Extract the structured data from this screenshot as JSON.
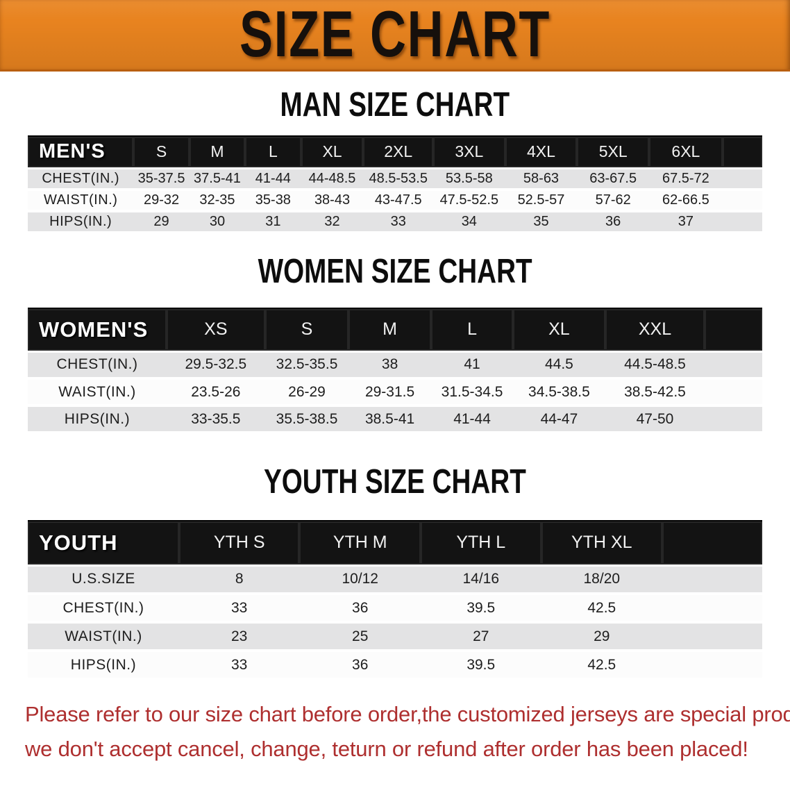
{
  "banner": {
    "title": "SIZE CHART",
    "bg_color": "#E8831F",
    "text_color": "#16100C"
  },
  "sections": [
    {
      "title": "MAN SIZE CHART",
      "corner_label": "MEN'S",
      "columns": [
        "S",
        "M",
        "L",
        "XL",
        "2XL",
        "3XL",
        "4XL",
        "5XL",
        "6XL"
      ],
      "rows": [
        {
          "label": "CHEST(IN.)",
          "values": [
            "35-37.5",
            "37.5-41",
            "41-44",
            "44-48.5",
            "48.5-53.5",
            "53.5-58",
            "58-63",
            "63-67.5",
            "67.5-72"
          ]
        },
        {
          "label": "WAIST(IN.)",
          "values": [
            "29-32",
            "32-35",
            "35-38",
            "38-43",
            "43-47.5",
            "47.5-52.5",
            "52.5-57",
            "57-62",
            "62-66.5"
          ]
        },
        {
          "label": "HIPS(IN.)",
          "values": [
            "29",
            "30",
            "31",
            "32",
            "33",
            "34",
            "35",
            "36",
            "37"
          ]
        }
      ]
    },
    {
      "title": "WOMEN SIZE CHART",
      "corner_label": "WOMEN'S",
      "columns": [
        "XS",
        "S",
        "M",
        "L",
        "XL",
        "XXL"
      ],
      "rows": [
        {
          "label": "CHEST(IN.)",
          "values": [
            "29.5-32.5",
            "32.5-35.5",
            "38",
            "41",
            "44.5",
            "44.5-48.5"
          ]
        },
        {
          "label": "WAIST(IN.)",
          "values": [
            "23.5-26",
            "26-29",
            "29-31.5",
            "31.5-34.5",
            "34.5-38.5",
            "38.5-42.5"
          ]
        },
        {
          "label": "HIPS(IN.)",
          "values": [
            "33-35.5",
            "35.5-38.5",
            "38.5-41",
            "41-44",
            "44-47",
            "47-50"
          ]
        }
      ]
    },
    {
      "title": "YOUTH SIZE CHART",
      "corner_label": "YOUTH",
      "columns": [
        "YTH S",
        "YTH M",
        "YTH L",
        "YTH XL"
      ],
      "rows": [
        {
          "label": "U.S.SIZE",
          "values": [
            "8",
            "10/12",
            "14/16",
            "18/20"
          ]
        },
        {
          "label": "CHEST(IN.)",
          "values": [
            "33",
            "36",
            "39.5",
            "42.5"
          ]
        },
        {
          "label": "WAIST(IN.)",
          "values": [
            "23",
            "25",
            "27",
            "29"
          ]
        },
        {
          "label": "HIPS(IN.)",
          "values": [
            "33",
            "36",
            "39.5",
            "42.5"
          ]
        }
      ]
    }
  ],
  "disclaimer": {
    "line1": "Please refer to our size chart before order,the customized jerseys are special products,",
    "line2": "we don't accept cancel, change, teturn or refund after order has been placed!",
    "color": "#AE2F2F"
  }
}
